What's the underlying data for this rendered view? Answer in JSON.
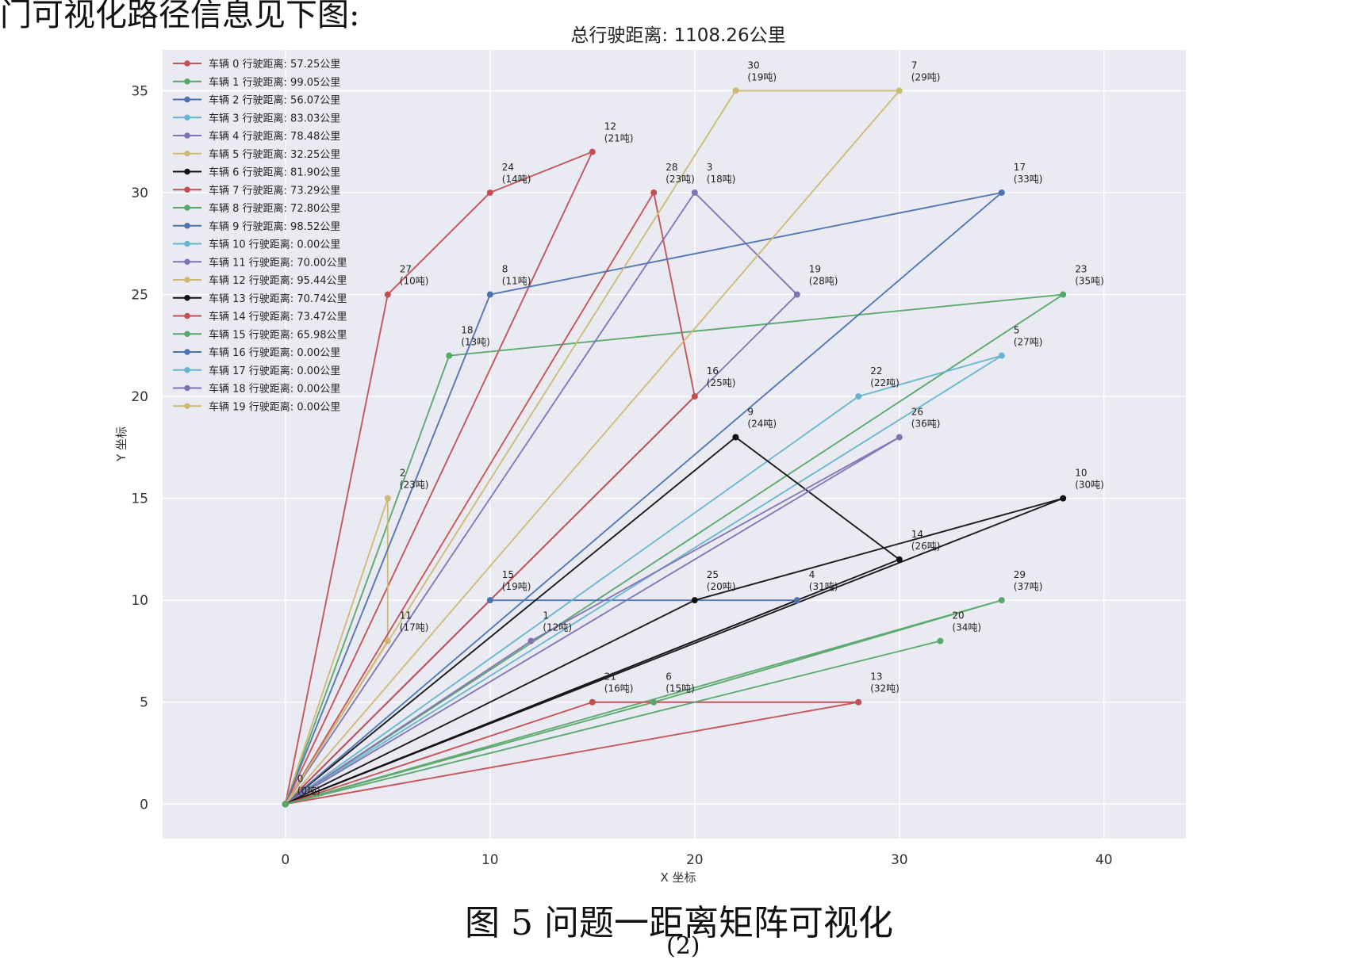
{
  "document": {
    "top_fragment": "门可视化路径信息见下图:",
    "caption": "图 5  问题一距离矩阵可视化",
    "bottom_fragment": "(2)"
  },
  "chart_data": {
    "type": "line",
    "title": "总行驶距离: 1108.26公里",
    "xlabel": "X 坐标",
    "ylabel": "Y 坐标",
    "xlim": [
      -6,
      44
    ],
    "ylim": [
      -1.7,
      37
    ],
    "xticks": [
      0,
      10,
      20,
      30,
      40
    ],
    "yticks": [
      0,
      5,
      10,
      15,
      20,
      25,
      30,
      35
    ],
    "grid": true,
    "background": "#eaeaf2",
    "legend_position": "top-left",
    "nodes": [
      {
        "id": 0,
        "x": 0,
        "y": 0,
        "demand": 0
      },
      {
        "id": 1,
        "x": 12,
        "y": 8,
        "demand": 12
      },
      {
        "id": 2,
        "x": 5,
        "y": 15,
        "demand": 23
      },
      {
        "id": 3,
        "x": 20,
        "y": 30,
        "demand": 18
      },
      {
        "id": 4,
        "x": 25,
        "y": 10,
        "demand": 31
      },
      {
        "id": 5,
        "x": 35,
        "y": 22,
        "demand": 27
      },
      {
        "id": 6,
        "x": 18,
        "y": 5,
        "demand": 15
      },
      {
        "id": 7,
        "x": 30,
        "y": 35,
        "demand": 29
      },
      {
        "id": 8,
        "x": 10,
        "y": 25,
        "demand": 11
      },
      {
        "id": 9,
        "x": 22,
        "y": 18,
        "demand": 24
      },
      {
        "id": 10,
        "x": 38,
        "y": 15,
        "demand": 30
      },
      {
        "id": 11,
        "x": 5,
        "y": 8,
        "demand": 17
      },
      {
        "id": 12,
        "x": 15,
        "y": 32,
        "demand": 21
      },
      {
        "id": 13,
        "x": 28,
        "y": 5,
        "demand": 32
      },
      {
        "id": 14,
        "x": 30,
        "y": 12,
        "demand": 26
      },
      {
        "id": 15,
        "x": 10,
        "y": 10,
        "demand": 19
      },
      {
        "id": 16,
        "x": 20,
        "y": 20,
        "demand": 25
      },
      {
        "id": 17,
        "x": 35,
        "y": 30,
        "demand": 33
      },
      {
        "id": 18,
        "x": 8,
        "y": 22,
        "demand": 13
      },
      {
        "id": 19,
        "x": 25,
        "y": 25,
        "demand": 28
      },
      {
        "id": 20,
        "x": 32,
        "y": 8,
        "demand": 34
      },
      {
        "id": 21,
        "x": 15,
        "y": 5,
        "demand": 16
      },
      {
        "id": 22,
        "x": 28,
        "y": 20,
        "demand": 22
      },
      {
        "id": 23,
        "x": 38,
        "y": 25,
        "demand": 35
      },
      {
        "id": 24,
        "x": 10,
        "y": 30,
        "demand": 14
      },
      {
        "id": 25,
        "x": 20,
        "y": 10,
        "demand": 20
      },
      {
        "id": 26,
        "x": 30,
        "y": 18,
        "demand": 36
      },
      {
        "id": 27,
        "x": 5,
        "y": 25,
        "demand": 10
      },
      {
        "id": 28,
        "x": 18,
        "y": 30,
        "demand": 23
      },
      {
        "id": 29,
        "x": 35,
        "y": 10,
        "demand": 37
      },
      {
        "id": 30,
        "x": 22,
        "y": 35,
        "demand": 19
      }
    ],
    "series": [
      {
        "name": "车辆 0 行驶距离: 57.25公里",
        "color": "#c44e52",
        "route": [
          0,
          27,
          24,
          12,
          0
        ]
      },
      {
        "name": "车辆 1 行驶距离: 99.05公里",
        "color": "#55a868",
        "route": [
          0,
          18,
          23,
          0
        ]
      },
      {
        "name": "车辆 2 行驶距离: 56.07公里",
        "color": "#4c72b0",
        "route": [
          0,
          15,
          4,
          0
        ]
      },
      {
        "name": "车辆 3 行驶距离: 83.03公里",
        "color": "#64b5cd",
        "route": [
          0,
          22,
          5,
          0
        ]
      },
      {
        "name": "车辆 4 行驶距离: 78.48公里",
        "color": "#8172b2",
        "route": [
          0,
          3,
          19,
          0
        ]
      },
      {
        "name": "车辆 5 行驶距离: 32.25公里",
        "color": "#ccb974",
        "route": [
          0,
          2,
          11,
          0
        ]
      },
      {
        "name": "车辆 6 行驶距离: 81.90公里",
        "color": "#111111",
        "route": [
          0,
          9,
          14,
          0
        ]
      },
      {
        "name": "车辆 7 行驶距离: 73.29公里",
        "color": "#c44e52",
        "route": [
          0,
          28,
          16,
          0
        ]
      },
      {
        "name": "车辆 8 行驶距离: 72.80公里",
        "color": "#55a868",
        "route": [
          0,
          29,
          6,
          0
        ]
      },
      {
        "name": "车辆 9 行驶距离: 98.52公里",
        "color": "#4c72b0",
        "route": [
          0,
          8,
          17,
          0
        ]
      },
      {
        "name": "车辆 10 行驶距离: 0.00公里",
        "color": "#64b5cd",
        "route": []
      },
      {
        "name": "车辆 11 行驶距离: 70.00公里",
        "color": "#8172b2",
        "route": [
          0,
          1,
          26,
          0
        ]
      },
      {
        "name": "车辆 12 行驶距离: 95.44公里",
        "color": "#ccb974",
        "route": [
          0,
          30,
          7,
          0
        ]
      },
      {
        "name": "车辆 13 行驶距离: 70.74公里",
        "color": "#111111",
        "route": [
          0,
          25,
          10,
          0
        ]
      },
      {
        "name": "车辆 14 行驶距离: 73.47公里",
        "color": "#c44e52",
        "route": [
          0,
          21,
          13,
          0
        ]
      },
      {
        "name": "车辆 15 行驶距离: 65.98公里",
        "color": "#55a868",
        "route": [
          0,
          20,
          0
        ]
      },
      {
        "name": "车辆 16 行驶距离: 0.00公里",
        "color": "#4c72b0",
        "route": []
      },
      {
        "name": "车辆 17 行驶距离: 0.00公里",
        "color": "#64b5cd",
        "route": []
      },
      {
        "name": "车辆 18 行驶距离: 0.00公里",
        "color": "#8172b2",
        "route": []
      },
      {
        "name": "车辆 19 行驶距离: 0.00公里",
        "color": "#ccb974",
        "route": []
      }
    ]
  }
}
